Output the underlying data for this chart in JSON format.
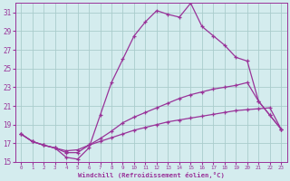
{
  "xlabel": "Windchill (Refroidissement éolien,°C)",
  "bg_color": "#d4ecee",
  "grid_color": "#aacccc",
  "line_color": "#993399",
  "xlim": [
    -0.5,
    23.5
  ],
  "ylim": [
    15,
    32
  ],
  "yticks": [
    15,
    17,
    19,
    21,
    23,
    25,
    27,
    29,
    31
  ],
  "xticks": [
    0,
    1,
    2,
    3,
    4,
    5,
    6,
    7,
    8,
    9,
    10,
    11,
    12,
    13,
    14,
    15,
    16,
    17,
    18,
    19,
    20,
    21,
    22,
    23
  ],
  "series": [
    {
      "x": [
        0,
        1,
        2,
        3,
        4,
        5,
        6,
        7,
        8,
        9,
        10,
        11,
        12,
        13,
        14,
        15,
        16,
        17,
        18,
        19,
        20,
        21,
        22,
        23
      ],
      "y": [
        18.0,
        17.2,
        16.8,
        16.5,
        16.2,
        16.3,
        16.8,
        17.2,
        17.6,
        18.0,
        18.4,
        18.7,
        19.0,
        19.3,
        19.5,
        19.7,
        19.9,
        20.1,
        20.3,
        20.5,
        20.6,
        20.7,
        20.8,
        18.5
      ]
    },
    {
      "x": [
        0,
        1,
        2,
        3,
        4,
        5,
        6,
        7,
        8,
        9,
        10,
        11,
        12,
        13,
        14,
        15,
        16,
        17,
        18,
        19,
        20,
        21,
        22,
        23
      ],
      "y": [
        18.0,
        17.2,
        16.8,
        16.5,
        16.0,
        16.0,
        16.8,
        17.5,
        18.3,
        19.2,
        19.8,
        20.3,
        20.8,
        21.3,
        21.8,
        22.2,
        22.5,
        22.8,
        23.0,
        23.2,
        23.5,
        21.5,
        20.0,
        18.5
      ]
    },
    {
      "x": [
        0,
        1,
        2,
        3,
        4,
        5,
        6,
        7,
        8,
        9,
        10,
        11,
        12,
        13,
        14,
        15,
        16,
        17,
        18,
        19,
        20,
        21,
        22,
        23
      ],
      "y": [
        18.0,
        17.2,
        16.8,
        16.5,
        15.5,
        15.3,
        16.5,
        20.0,
        23.5,
        26.0,
        28.5,
        30.0,
        31.2,
        30.8,
        30.5,
        32.0,
        29.5,
        28.5,
        27.5,
        26.2,
        25.8,
        21.5,
        20.0,
        18.5
      ]
    }
  ]
}
